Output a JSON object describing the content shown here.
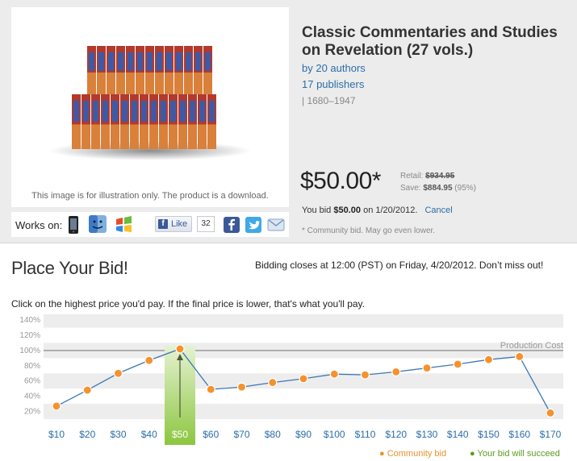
{
  "product": {
    "title": "Classic Commentaries and Studies on Revelation (27 vols.)",
    "authors": "by 20 authors",
    "publishers": "17 publishers",
    "years": "|  1680–1947",
    "image_caption": "This image is for illustration only. The product is a download."
  },
  "works_on": {
    "label": "Works on:",
    "platforms": [
      "iphone-icon",
      "mac-finder-icon",
      "windows-icon"
    ]
  },
  "social": {
    "like_label": "Like",
    "like_count": "32",
    "icons": [
      "facebook-icon",
      "twitter-icon",
      "email-icon"
    ]
  },
  "pricing": {
    "price": "$50.00*",
    "retail_label": "Retail:",
    "retail_value": "$934.95",
    "save_label": "Save:",
    "save_value": "$884.95",
    "save_pct": "(95%)",
    "you_bid_prefix": "You bid",
    "you_bid_amount": "$50.00",
    "you_bid_suffix": "on 1/20/2012.",
    "cancel": "Cancel",
    "community_note": "* Community bid. May go even lower."
  },
  "bid": {
    "heading": "Place Your Bid!",
    "closes": "Bidding closes at 12:00 (PST) on Friday, 4/20/2012. Don’t miss out!",
    "instructions": "Click on the highest price you'd pay. If the final price is lower, that's what you'll pay."
  },
  "chart_data": {
    "type": "line",
    "categories": [
      "$10",
      "$20",
      "$30",
      "$40",
      "$50",
      "$60",
      "$70",
      "$80",
      "$90",
      "$100",
      "$110",
      "$120",
      "$130",
      "$140",
      "$150",
      "$160",
      "$170"
    ],
    "values": [
      27,
      48,
      70,
      87,
      102,
      49,
      52,
      58,
      63,
      69,
      68,
      72,
      77,
      82,
      88,
      92,
      18
    ],
    "selected_category": "$50",
    "ylim": [
      10,
      140
    ],
    "y_ticks": [
      "20%",
      "40%",
      "60%",
      "80%",
      "100%",
      "120%",
      "140%"
    ],
    "y_tick_values": [
      20,
      40,
      60,
      80,
      100,
      120,
      140
    ],
    "reference_line": {
      "value": 100,
      "label": "Production Cost"
    },
    "legend": [
      {
        "name": "Community bid",
        "color": "#f5922e"
      },
      {
        "name": "Your bid will succeed",
        "color": "#5b9b22"
      }
    ],
    "colors": {
      "line": "#3a78b5",
      "point": "#f5922e",
      "highlight": "#8cc63f",
      "axis_label": "#2a6ea8"
    }
  }
}
